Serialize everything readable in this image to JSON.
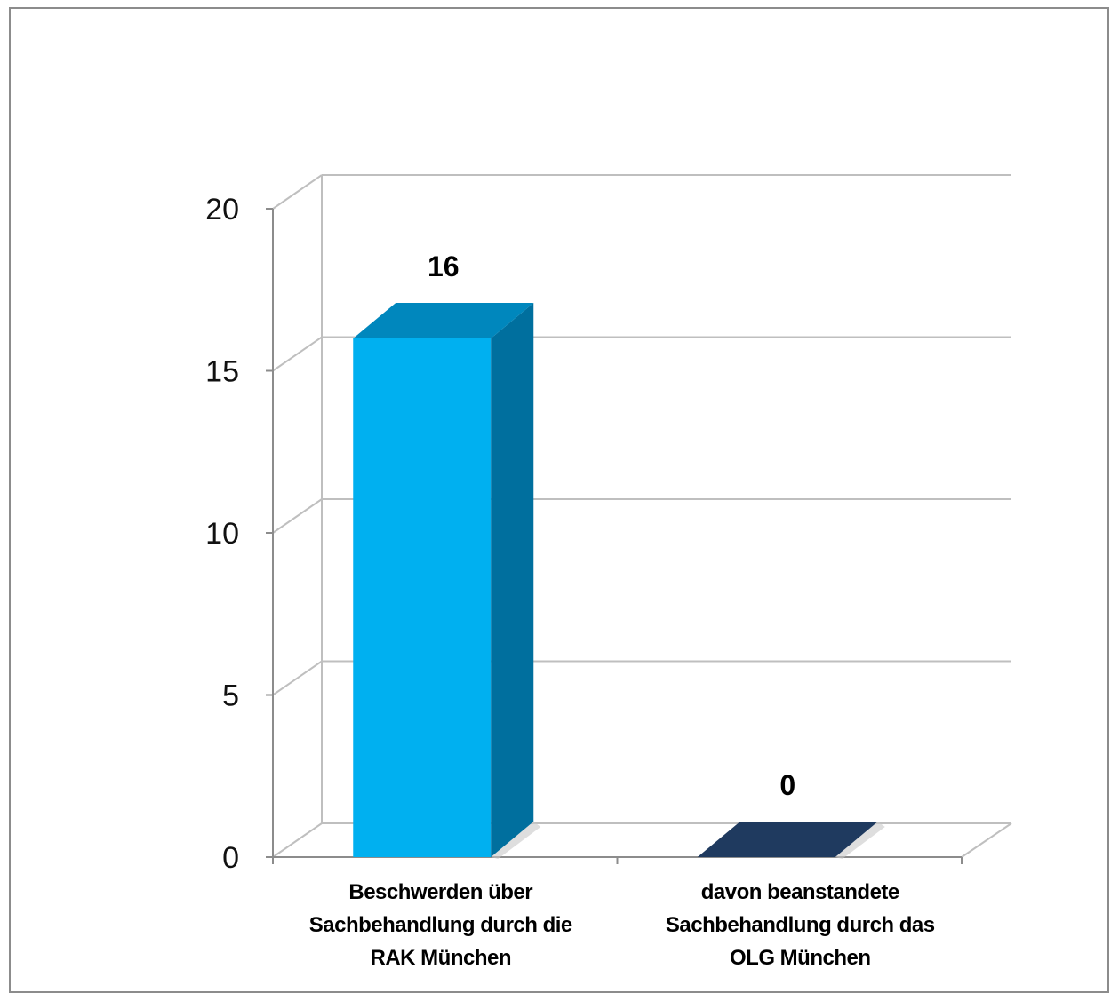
{
  "chart_data": {
    "type": "bar",
    "style": "3d-column",
    "categories": [
      [
        "Beschwerden über",
        "Sachbehandlung durch  die",
        "RAK München"
      ],
      [
        "davon beanstandete",
        "Sachbehandlung durch das",
        "OLG München"
      ]
    ],
    "values": [
      16,
      0
    ],
    "data_labels": [
      "16",
      "0"
    ],
    "ylim": [
      0,
      20
    ],
    "yticks": [
      "0",
      "5",
      "10",
      "15",
      "20"
    ],
    "grid": true,
    "legend": "none",
    "colors": {
      "bar1_front": "#00b0f0",
      "bar1_side": "#006f9e",
      "bar1_top": "#0087bd",
      "bar2_top": "#1f3a5f",
      "grid": "#bfbfbf",
      "axis": "#8c8c8c"
    }
  }
}
